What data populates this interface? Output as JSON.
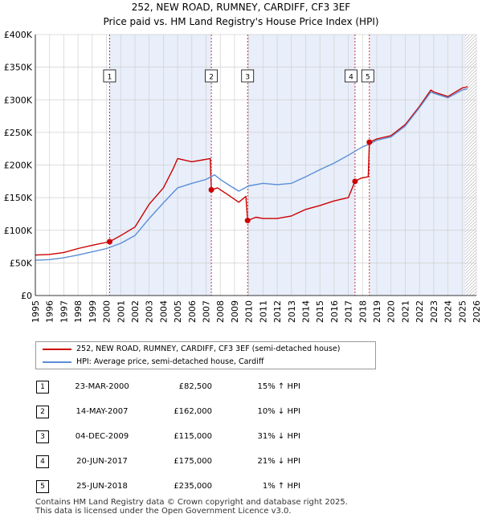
{
  "title_line1": "252, NEW ROAD, RUMNEY, CARDIFF, CF3 3EF",
  "title_line2": "Price paid vs. HM Land Registry's House Price Index (HPI)",
  "chart_data": {
    "type": "line",
    "ylim": [
      0,
      400000
    ],
    "xlim": [
      1995,
      2026
    ],
    "y_ticks": [
      0,
      50000,
      100000,
      150000,
      200000,
      250000,
      300000,
      350000,
      400000
    ],
    "y_tick_labels": [
      "£0",
      "£50K",
      "£100K",
      "£150K",
      "£200K",
      "£250K",
      "£300K",
      "£350K",
      "£400K"
    ],
    "x_ticks": [
      1995,
      1996,
      1997,
      1998,
      1999,
      2000,
      2001,
      2002,
      2003,
      2004,
      2005,
      2006,
      2007,
      2008,
      2009,
      2010,
      2011,
      2012,
      2013,
      2014,
      2015,
      2016,
      2017,
      2018,
      2019,
      2020,
      2021,
      2022,
      2023,
      2024,
      2025,
      2026
    ],
    "shaded_ranges": [
      [
        2000.22,
        2007.37
      ],
      [
        2009.92,
        2017.47
      ],
      [
        2018.48,
        2025.2
      ]
    ],
    "hatch_from": 2025.2,
    "series": [
      {
        "name": "252, NEW ROAD, RUMNEY, CARDIFF, CF3 3EF (semi-detached house)",
        "color": "#cc0000",
        "points": [
          [
            1995.0,
            62000
          ],
          [
            1996.0,
            63000
          ],
          [
            1997.0,
            66000
          ],
          [
            1998.0,
            72000
          ],
          [
            1999.0,
            77000
          ],
          [
            2000.22,
            82500
          ],
          [
            2001.0,
            92000
          ],
          [
            2002.0,
            105000
          ],
          [
            2003.0,
            140000
          ],
          [
            2004.0,
            165000
          ],
          [
            2004.7,
            195000
          ],
          [
            2005.0,
            210000
          ],
          [
            2006.0,
            205000
          ],
          [
            2006.8,
            208000
          ],
          [
            2007.3,
            210000
          ],
          [
            2007.37,
            162000
          ],
          [
            2007.8,
            165000
          ],
          [
            2008.5,
            155000
          ],
          [
            2009.3,
            143000
          ],
          [
            2009.8,
            152000
          ],
          [
            2009.92,
            115000
          ],
          [
            2010.5,
            120000
          ],
          [
            2011.0,
            118000
          ],
          [
            2012.0,
            118000
          ],
          [
            2013.0,
            122000
          ],
          [
            2014.0,
            132000
          ],
          [
            2015.0,
            138000
          ],
          [
            2016.0,
            145000
          ],
          [
            2017.0,
            150000
          ],
          [
            2017.47,
            175000
          ],
          [
            2017.9,
            180000
          ],
          [
            2018.4,
            182000
          ],
          [
            2018.48,
            235000
          ],
          [
            2019.0,
            240000
          ],
          [
            2020.0,
            245000
          ],
          [
            2021.0,
            262000
          ],
          [
            2022.0,
            290000
          ],
          [
            2022.8,
            315000
          ],
          [
            2023.0,
            312000
          ],
          [
            2024.0,
            305000
          ],
          [
            2025.0,
            318000
          ],
          [
            2025.4,
            320000
          ]
        ]
      },
      {
        "name": "HPI: Average price, semi-detached house, Cardiff",
        "color": "#5b8ed6",
        "points": [
          [
            1995.0,
            54000
          ],
          [
            1996.0,
            55000
          ],
          [
            1997.0,
            58000
          ],
          [
            1998.0,
            62000
          ],
          [
            1999.0,
            67000
          ],
          [
            2000.0,
            72000
          ],
          [
            2001.0,
            80000
          ],
          [
            2002.0,
            92000
          ],
          [
            2003.0,
            118000
          ],
          [
            2004.0,
            142000
          ],
          [
            2005.0,
            165000
          ],
          [
            2006.0,
            172000
          ],
          [
            2007.0,
            178000
          ],
          [
            2007.6,
            185000
          ],
          [
            2008.0,
            178000
          ],
          [
            2008.7,
            168000
          ],
          [
            2009.3,
            160000
          ],
          [
            2010.0,
            168000
          ],
          [
            2011.0,
            172000
          ],
          [
            2012.0,
            170000
          ],
          [
            2013.0,
            172000
          ],
          [
            2014.0,
            182000
          ],
          [
            2015.0,
            193000
          ],
          [
            2016.0,
            203000
          ],
          [
            2017.0,
            215000
          ],
          [
            2018.0,
            228000
          ],
          [
            2018.48,
            232000
          ],
          [
            2019.0,
            238000
          ],
          [
            2020.0,
            243000
          ],
          [
            2021.0,
            260000
          ],
          [
            2022.0,
            288000
          ],
          [
            2022.8,
            312000
          ],
          [
            2023.0,
            310000
          ],
          [
            2024.0,
            303000
          ],
          [
            2025.0,
            315000
          ],
          [
            2025.4,
            317000
          ]
        ]
      }
    ],
    "sales": [
      {
        "n": "1",
        "x": 2000.22,
        "price": 82500
      },
      {
        "n": "2",
        "x": 2007.37,
        "price": 162000
      },
      {
        "n": "3",
        "x": 2009.92,
        "price": 115000
      },
      {
        "n": "4",
        "x": 2017.47,
        "price": 175000
      },
      {
        "n": "5",
        "x": 2018.48,
        "price": 235000
      }
    ]
  },
  "legend": {
    "item1": "252, NEW ROAD, RUMNEY, CARDIFF, CF3 3EF (semi-detached house)",
    "item2": "HPI: Average price, semi-detached house, Cardiff"
  },
  "transactions": [
    {
      "n": "1",
      "date": "23-MAR-2000",
      "price": "£82,500",
      "hpi": "15% ↑ HPI"
    },
    {
      "n": "2",
      "date": "14-MAY-2007",
      "price": "£162,000",
      "hpi": "10% ↓ HPI"
    },
    {
      "n": "3",
      "date": "04-DEC-2009",
      "price": "£115,000",
      "hpi": "31% ↓ HPI"
    },
    {
      "n": "4",
      "date": "20-JUN-2017",
      "price": "£175,000",
      "hpi": "21% ↓ HPI"
    },
    {
      "n": "5",
      "date": "25-JUN-2018",
      "price": "£235,000",
      "hpi": "1% ↑ HPI"
    }
  ],
  "footer_line1": "Contains HM Land Registry data © Crown copyright and database right 2025.",
  "footer_line2": "This data is licensed under the Open Government Licence v3.0."
}
